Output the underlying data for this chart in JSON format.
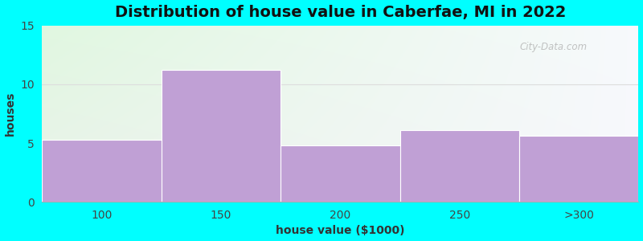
{
  "title": "Distribution of house value in Caberfae, MI in 2022",
  "xlabel": "house value ($1000)",
  "ylabel": "houses",
  "categories": [
    "100",
    "150",
    "200",
    "250",
    ">300"
  ],
  "values": [
    5.3,
    11.2,
    4.8,
    6.1,
    5.6
  ],
  "bar_color": "#c0a0d5",
  "ylim": [
    0,
    15
  ],
  "yticks": [
    0,
    5,
    10,
    15
  ],
  "bg_color": "#00ffff",
  "title_fontsize": 14,
  "label_fontsize": 10,
  "tick_fontsize": 10,
  "watermark": "City-Data.com",
  "n_bars": 5,
  "grid_color": "#cccccc"
}
